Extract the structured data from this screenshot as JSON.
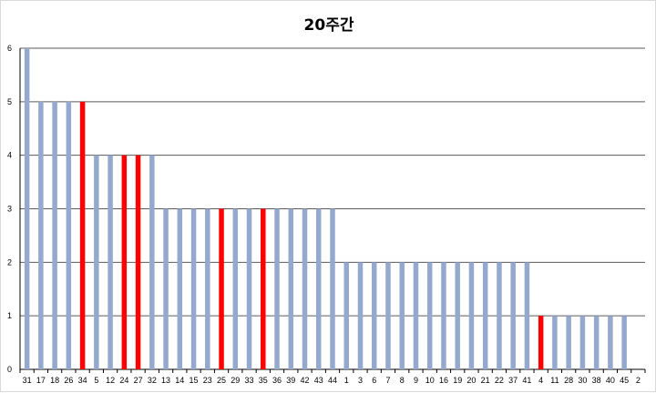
{
  "chart_data": {
    "type": "bar",
    "title": "20주간",
    "xlabel": "",
    "ylabel": "",
    "ylim": [
      0,
      6
    ],
    "yticks": [
      0,
      1,
      2,
      3,
      4,
      5,
      6
    ],
    "grid": true,
    "legend": "none",
    "categories": [
      "31",
      "17",
      "18",
      "26",
      "34",
      "5",
      "12",
      "24",
      "27",
      "32",
      "13",
      "14",
      "15",
      "23",
      "25",
      "29",
      "33",
      "35",
      "36",
      "39",
      "42",
      "43",
      "44",
      "1",
      "3",
      "6",
      "7",
      "8",
      "9",
      "10",
      "16",
      "19",
      "20",
      "21",
      "22",
      "37",
      "41",
      "4",
      "11",
      "28",
      "30",
      "38",
      "40",
      "45",
      "2"
    ],
    "values": [
      6,
      5,
      5,
      5,
      5,
      4,
      4,
      4,
      4,
      4,
      3,
      3,
      3,
      3,
      3,
      3,
      3,
      3,
      3,
      3,
      3,
      3,
      3,
      2,
      2,
      2,
      2,
      2,
      2,
      2,
      2,
      2,
      2,
      2,
      2,
      2,
      2,
      1,
      1,
      1,
      1,
      1,
      1,
      1,
      0
    ],
    "highlighted": [
      "34",
      "24",
      "27",
      "25",
      "35",
      "4"
    ],
    "colors": {
      "default_bar": "#95a9cf",
      "highlight_bar": "#ff0000",
      "grid": "#5a5a5a"
    }
  }
}
